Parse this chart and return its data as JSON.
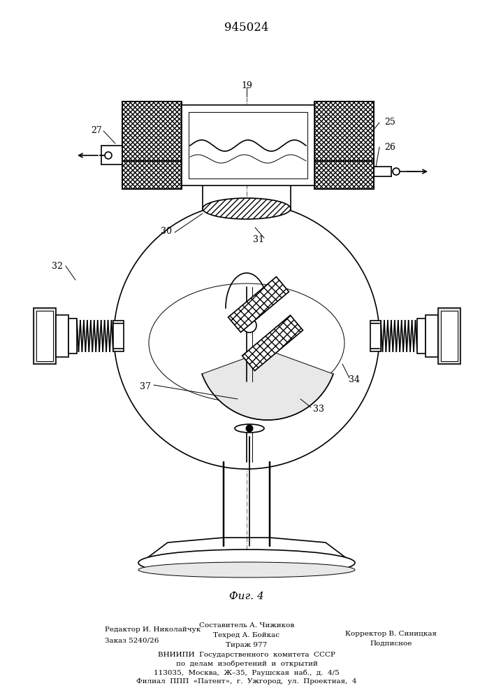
{
  "patent_number": "945024",
  "fig_label": "Фиг. 4",
  "background_color": "#ffffff",
  "line_color": "#000000",
  "editor_line1": "Редактор И. Николайчук",
  "editor_line2": "Заказ 5240/26",
  "composer": "Составитель А. Чижиков",
  "techred": "Техред А. Бойкас",
  "tirazh": "Тираж 977",
  "corrector": "Корректор В. Синицкая",
  "podpisnoe": "Подписное",
  "vniip1": "ВНИИПИ  Государственного  комитета  СССР",
  "vniip2": "по  делам  изобретений  и  открытий",
  "vniip3": "113035,  Москва,  Ж–35,  Раушская  наб.,  д.  4/5",
  "vniip4": "Филиал  ППП  «Патент»,  г.  Ужгород,  ул.  Проектная,  4"
}
